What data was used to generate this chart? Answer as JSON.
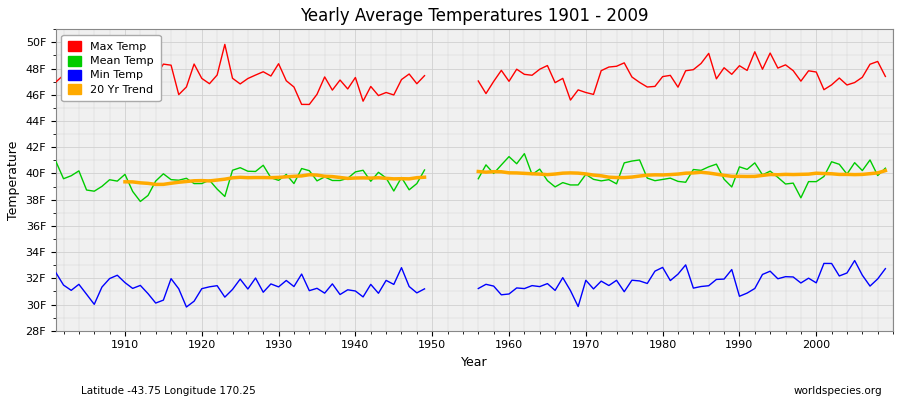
{
  "title": "Yearly Average Temperatures 1901 - 2009",
  "xlabel": "Year",
  "ylabel": "Temperature",
  "subtitle": "Latitude -43.75 Longitude 170.25",
  "watermark": "worldspecies.org",
  "bg_color": "#ffffff",
  "plot_bg_color": "#f0f0f0",
  "legend_labels": [
    "Max Temp",
    "Mean Temp",
    "Min Temp",
    "20 Yr Trend"
  ],
  "legend_colors": [
    "#ff0000",
    "#00cc00",
    "#0000ff",
    "#ffaa00"
  ],
  "ylim": [
    28,
    51
  ],
  "yticks": [
    28,
    30,
    32,
    34,
    36,
    38,
    40,
    42,
    44,
    46,
    48,
    50
  ],
  "xlim": [
    1901,
    2010
  ],
  "xticks": [
    1910,
    1920,
    1930,
    1940,
    1950,
    1960,
    1970,
    1980,
    1990,
    2000
  ],
  "grid_color": "#d0d0d0",
  "line_width": 1.0
}
